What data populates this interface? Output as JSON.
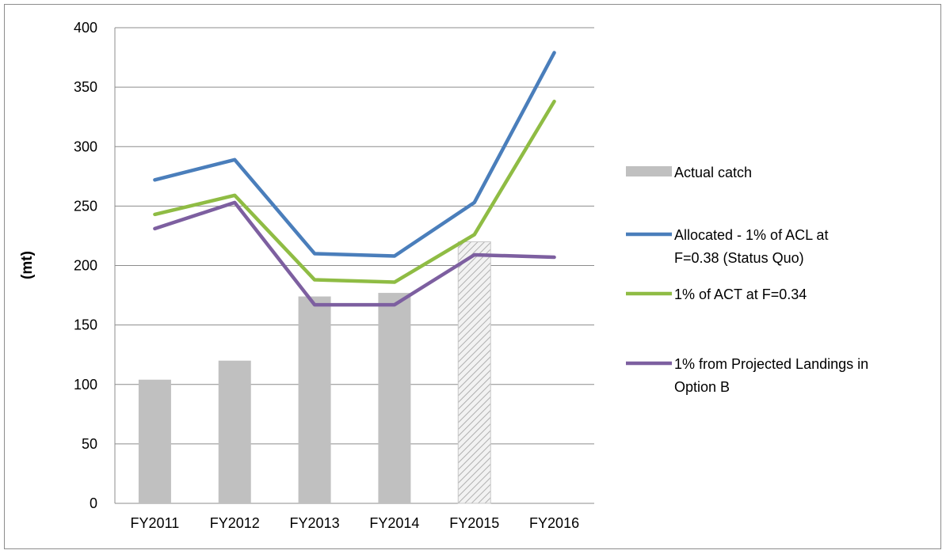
{
  "chart_data": {
    "type": "bar",
    "title": "",
    "xlabel": "",
    "ylabel": "(mt)",
    "ylim": [
      0,
      400
    ],
    "yticks": [
      0,
      50,
      100,
      150,
      200,
      250,
      300,
      350,
      400
    ],
    "grid": true,
    "legend_position": "right",
    "categories": [
      "FY2011",
      "FY2012",
      "FY2013",
      "FY2014",
      "FY2015",
      "FY2016"
    ],
    "bars": {
      "name": "Actual catch",
      "values": [
        104,
        120,
        174,
        177,
        220,
        null
      ],
      "color": "#c0c0c0",
      "hatched_category": "FY2015"
    },
    "series": [
      {
        "name": "Allocated - 1% of ACL at F=0.38 (Status Quo)",
        "name_lines": [
          "Allocated - 1% of ACL at",
          "F=0.38 (Status Quo)"
        ],
        "type": "line",
        "color": "#4a7ebb",
        "values": [
          272,
          289,
          210,
          208,
          253,
          379
        ]
      },
      {
        "name": "1% of ACT at F=0.34",
        "name_lines": [
          "1% of ACT at F=0.34"
        ],
        "type": "line",
        "color": "#8fbc44",
        "values": [
          243,
          259,
          188,
          186,
          226,
          338
        ]
      },
      {
        "name": "1% from Projected Landings in Option B",
        "name_lines": [
          "1% from Projected Landings in",
          "Option B"
        ],
        "type": "line",
        "color": "#7d5fa0",
        "values": [
          231,
          253,
          167,
          167,
          209,
          207
        ]
      }
    ]
  }
}
